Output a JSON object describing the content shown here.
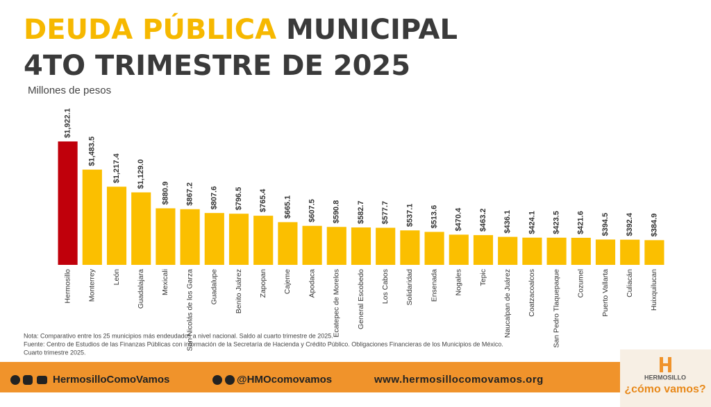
{
  "chart_data": {
    "type": "bar",
    "title_part1": "DEUDA PÚBLICA",
    "title_part2": "MUNICIPAL",
    "title_line2": "4TO TRIMESTRE DE 2025",
    "subtitle": "Millones de pesos",
    "categories": [
      "Hermosillo",
      "Monterrey",
      "León",
      "Guadalajara",
      "Mexicali",
      "San Nicolás de los Garza",
      "Guadalupe",
      "Benito Juárez",
      "Zapopan",
      "Cajeme",
      "Apodaca",
      "Ecatepec de Morelos",
      "General Escobedo",
      "Los Cabos",
      "Solidaridad",
      "Ensenada",
      "Nogales",
      "Tepic",
      "Naucalpan de Juárez",
      "Coatzacoalcos",
      "San Pedro Tlaquepaque",
      "Cozumel",
      "Puerto Vallarta",
      "Culiacán",
      "Huixquilucan"
    ],
    "values": [
      1922.1,
      1483.5,
      1217.4,
      1129.0,
      880.9,
      867.2,
      807.6,
      796.5,
      765.4,
      665.1,
      607.5,
      590.8,
      582.7,
      577.7,
      537.1,
      513.6,
      470.4,
      463.2,
      436.1,
      424.1,
      423.5,
      421.6,
      394.5,
      392.4,
      384.9
    ],
    "value_labels": [
      "$1,922.1",
      "$1,483.5",
      "$1,217.4",
      "$1,129.0",
      "$880.9",
      "$867.2",
      "$807.6",
      "$796.5",
      "$765.4",
      "$665.1",
      "$607.5",
      "$590.8",
      "$582.7",
      "$577.7",
      "$537.1",
      "$513.6",
      "$470.4",
      "$463.2",
      "$436.1",
      "$424.1",
      "$423.5",
      "$421.6",
      "$394.5",
      "$392.4",
      "$384.9"
    ],
    "bar_colors": [
      "#c0000b",
      "#fbbf00",
      "#fbbf00",
      "#fbbf00",
      "#fbbf00",
      "#fbbf00",
      "#fbbf00",
      "#fbbf00",
      "#fbbf00",
      "#fbbf00",
      "#fbbf00",
      "#fbbf00",
      "#fbbf00",
      "#fbbf00",
      "#fbbf00",
      "#fbbf00",
      "#fbbf00",
      "#fbbf00",
      "#fbbf00",
      "#fbbf00",
      "#fbbf00",
      "#fbbf00",
      "#fbbf00",
      "#fbbf00",
      "#fbbf00"
    ]
  },
  "notes": [
    "Nota: Comparativo entre los 25 municipios más endeudados a nivel nacional. Saldo al cuarto trimestre de 2025.",
    "Fuente: Centro de Estudios de las Finanzas Públicas con información de la Secretaría de Hacienda y Crédito Público. Obligaciones Financieras de los Municipios de México.",
    "Cuarto trimestre 2025."
  ],
  "footer": {
    "facebook": "HermosilloComoVamos",
    "tiktok": "@HMOcomovamos",
    "website": "www.hermosillocomovamos.org"
  },
  "logo": {
    "top": "HERMOSILLO",
    "bottom": "¿cómo vamos?"
  }
}
